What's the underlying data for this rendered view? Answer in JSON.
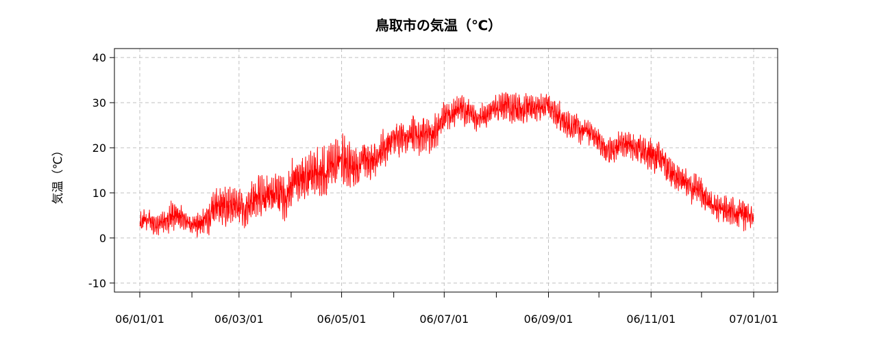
{
  "chart_data": {
    "type": "line",
    "title": "鳥取市の気温（℃）",
    "xlabel": "",
    "ylabel": "気温（℃）",
    "xlim": [
      "2006-01-01",
      "2007-01-01"
    ],
    "ylim": [
      -12,
      42
    ],
    "y_ticks": [
      -10,
      0,
      10,
      20,
      30,
      40
    ],
    "x_ticks": [
      {
        "date": "2006-01-01",
        "label": "06/01/01"
      },
      {
        "date": "2006-02-01",
        "label": ""
      },
      {
        "date": "2006-03-01",
        "label": "06/03/01"
      },
      {
        "date": "2006-04-01",
        "label": ""
      },
      {
        "date": "2006-05-01",
        "label": "06/05/01"
      },
      {
        "date": "2006-06-01",
        "label": ""
      },
      {
        "date": "2006-07-01",
        "label": "06/07/01"
      },
      {
        "date": "2006-08-01",
        "label": ""
      },
      {
        "date": "2006-09-01",
        "label": "06/09/01"
      },
      {
        "date": "2006-10-01",
        "label": ""
      },
      {
        "date": "2006-11-01",
        "label": "06/11/01"
      },
      {
        "date": "2006-12-01",
        "label": ""
      },
      {
        "date": "2007-01-01",
        "label": "07/01/01"
      }
    ],
    "grid": true,
    "series": [
      {
        "name": "",
        "color": "#ff0000",
        "sampling": "every 3 hours",
        "daily_envelope": {
          "dates": [
            "2006-01-01",
            "2006-01-11",
            "2006-01-21",
            "2006-01-31",
            "2006-02-10",
            "2006-02-20",
            "2006-03-02",
            "2006-03-12",
            "2006-03-22",
            "2006-04-01",
            "2006-04-11",
            "2006-04-21",
            "2006-05-01",
            "2006-05-11",
            "2006-05-21",
            "2006-05-31",
            "2006-06-10",
            "2006-06-20",
            "2006-06-30",
            "2006-07-10",
            "2006-07-20",
            "2006-07-30",
            "2006-08-09",
            "2006-08-19",
            "2006-08-29",
            "2006-09-08",
            "2006-09-18",
            "2006-09-28",
            "2006-10-08",
            "2006-10-18",
            "2006-10-28",
            "2006-11-07",
            "2006-11-17",
            "2006-11-27",
            "2006-12-07",
            "2006-12-17",
            "2006-12-27",
            "2006-12-31"
          ],
          "min": [
            -1,
            0,
            0,
            0,
            -2,
            -1,
            -1,
            0,
            -1,
            2,
            4,
            5,
            7,
            10,
            12,
            14,
            16,
            16,
            20,
            22,
            22,
            24,
            24,
            24,
            24,
            22,
            20,
            17,
            15,
            14,
            12,
            10,
            8,
            5,
            3,
            2,
            0,
            1
          ],
          "max": [
            8,
            7,
            12,
            7,
            11,
            13,
            13,
            15,
            16,
            19,
            21,
            24,
            26,
            25,
            27,
            27,
            29,
            31,
            31,
            33,
            31,
            34,
            36,
            35,
            34,
            33,
            30,
            26,
            25,
            25,
            24,
            23,
            18,
            16,
            13,
            13,
            12,
            9
          ]
        }
      }
    ]
  }
}
